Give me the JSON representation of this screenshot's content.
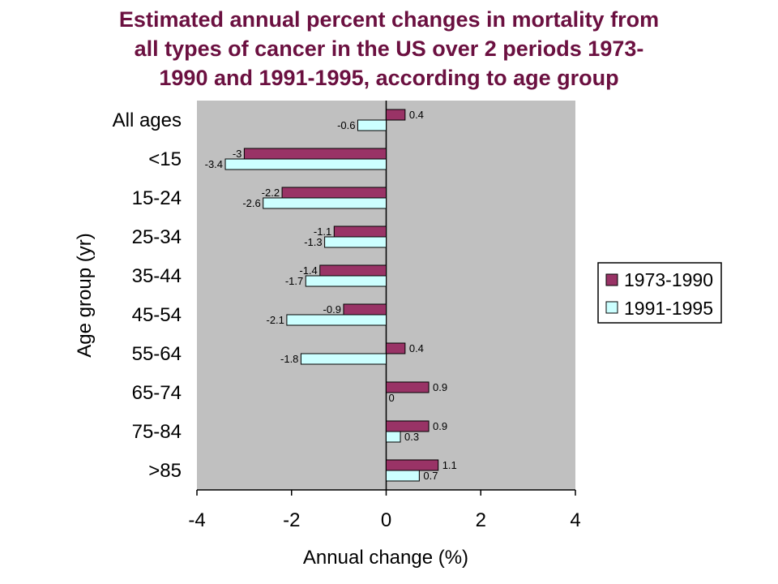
{
  "chart_data": {
    "type": "bar",
    "orientation": "horizontal",
    "title_lines": [
      "Estimated annual percent changes in mortality from",
      "all types of cancer in the US over 2 periods 1973-",
      "1990 and 1991-1995, according to age group"
    ],
    "xlabel": "Annual change (%)",
    "ylabel": "Age group (yr)",
    "xlim": [
      -4,
      4
    ],
    "xticks": [
      -4,
      -2,
      0,
      2,
      4
    ],
    "categories": [
      "All ages",
      "<15",
      "15-24",
      "25-34",
      "35-44",
      "45-54",
      "55-64",
      "65-74",
      "75-84",
      ">85"
    ],
    "series": [
      {
        "name": "1973-1990",
        "color": "#993366",
        "values": [
          0.4,
          -3,
          -2.2,
          -1.1,
          -1.4,
          -0.9,
          0.4,
          0.9,
          0.9,
          1.1
        ]
      },
      {
        "name": "1991-1995",
        "color": "#ccffff",
        "values": [
          -0.6,
          -3.4,
          -2.6,
          -1.3,
          -1.7,
          -2.1,
          -1.8,
          0,
          0.3,
          0.7
        ]
      }
    ],
    "plot_background": "#c0c0c0",
    "grid": false,
    "legend_position": "right"
  }
}
